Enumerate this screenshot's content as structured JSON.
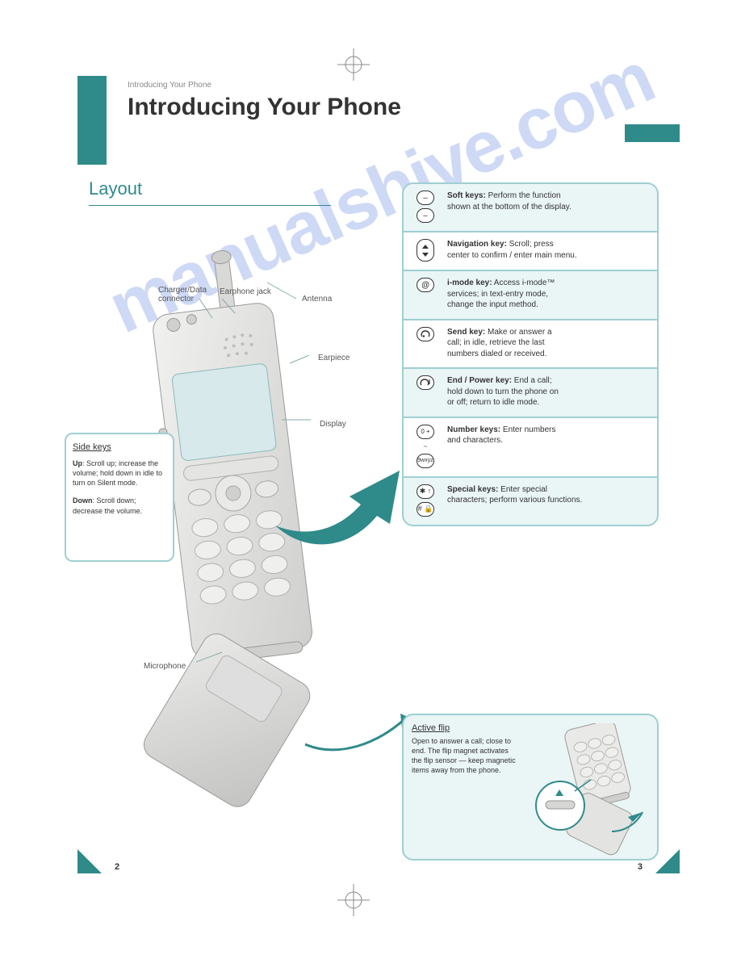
{
  "page": {
    "breadcrumb": "Introducing Your Phone",
    "title": "Introducing Your Phone",
    "section": "Layout",
    "page_left": "2",
    "page_right": "3",
    "watermark": "manualshive.com",
    "colors": {
      "teal": "#2f8a8a",
      "panel_bg": "#eaf5f6",
      "panel_border": "#9fcfd2",
      "text": "#333333",
      "muted": "#888888"
    }
  },
  "phone_callouts": {
    "antenna": "Antenna",
    "earphone_jack": "Earphone jack",
    "charger": "Charger/Data connector",
    "earpiece": "Earpiece",
    "display": "Display",
    "microphone": "Microphone"
  },
  "sidekeys": {
    "title": "Side keys",
    "rows": [
      {
        "label": "Up",
        "desc": ": Scroll up; increase the volume; hold down in idle to turn on Silent mode."
      },
      {
        "label": "Down",
        "desc": ": Scroll down; decrease the volume."
      }
    ]
  },
  "key_legend": [
    {
      "glyph": "softpair",
      "lines": [
        "<b>Soft keys:</b> Perform the function",
        "shown at the bottom of the display."
      ]
    },
    {
      "glyph": "nav",
      "lines": [
        "<b>Navigation key:</b> Scroll; press",
        "center to confirm / enter main menu."
      ]
    },
    {
      "glyph": "at",
      "lines": [
        "<b>i-mode key:</b> Access i-mode™",
        "services; in text-entry mode,",
        "change the input method."
      ]
    },
    {
      "glyph": "send",
      "lines": [
        "<b>Send key:</b> Make or answer a",
        "call; in idle, retrieve the last",
        "numbers dialed or received."
      ]
    },
    {
      "glyph": "end",
      "lines": [
        "<b>End / Power key:</b> End a call;",
        "hold down to turn the phone on",
        "or off; return to idle mode."
      ]
    },
    {
      "glyph": "digits",
      "lines": [
        "<b>Number keys:</b> Enter numbers",
        "and characters."
      ]
    },
    {
      "glyph": "starhash",
      "lines": [
        "<b>Special keys:</b> Enter special",
        "characters; perform various functions."
      ]
    }
  ],
  "flip": {
    "title": "Active flip",
    "text": "Open to answer a call; close to end. The flip magnet activates the flip sensor — keep magnetic items away from the phone."
  }
}
